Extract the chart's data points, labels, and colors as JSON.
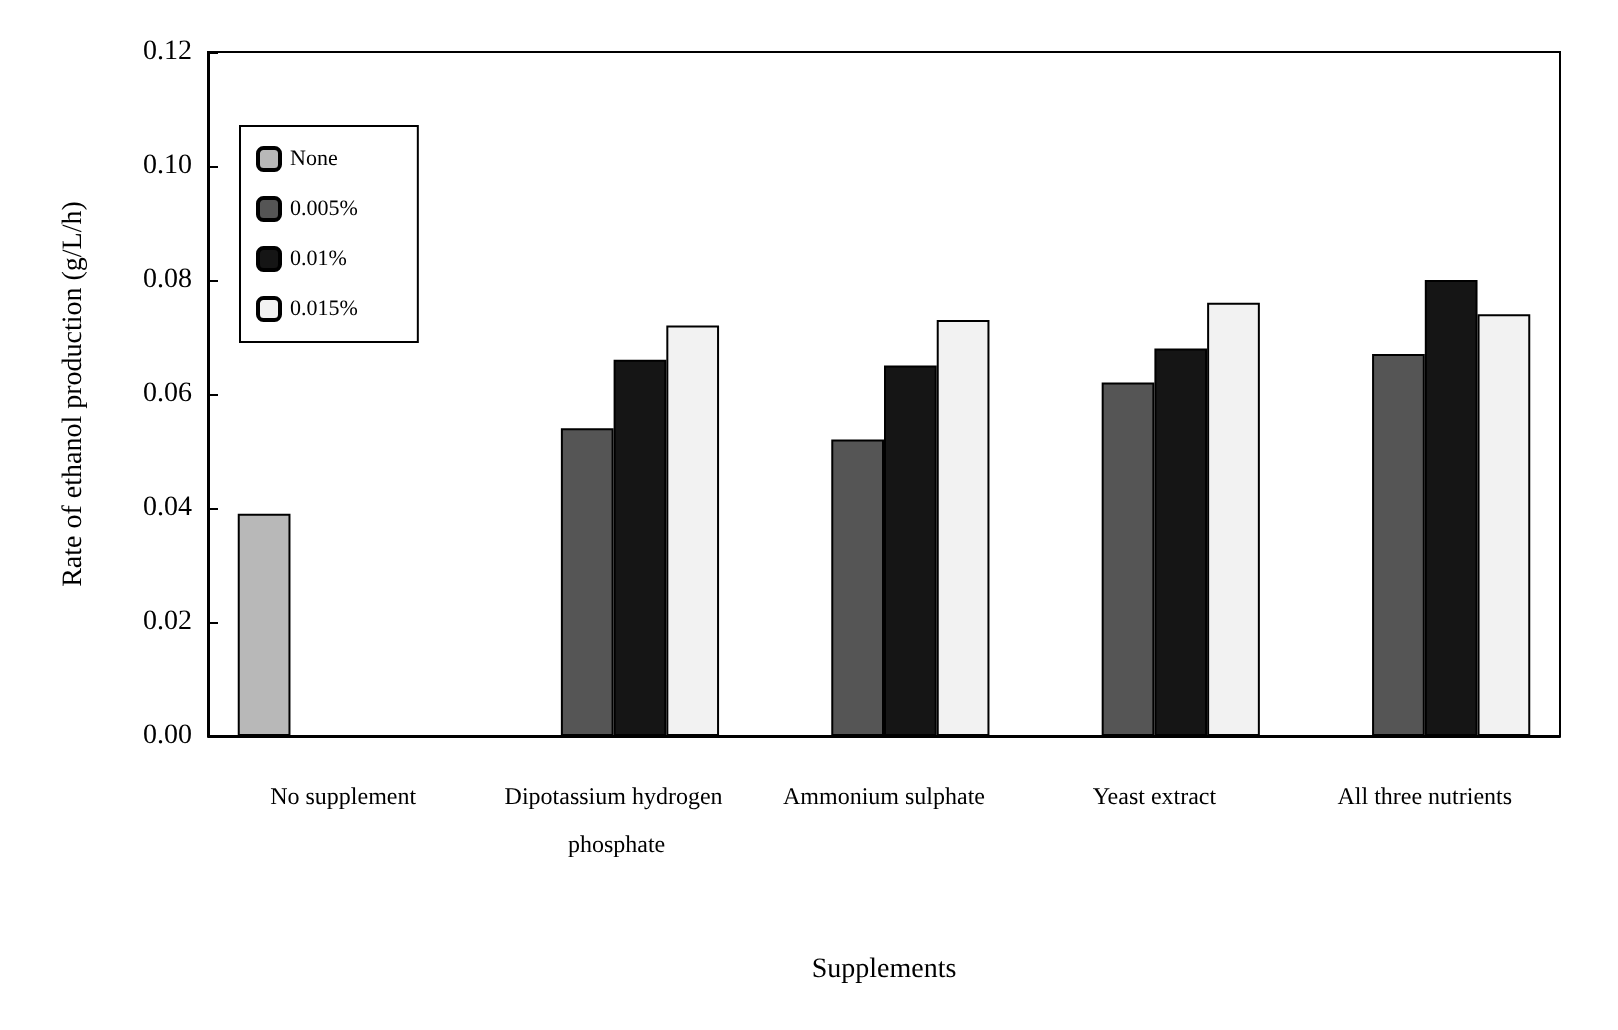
{
  "chart_data": {
    "type": "bar",
    "xlabel": "Supplements",
    "ylabel": "Rate of ethanol production (g/L/h)",
    "categories": [
      "No supplement",
      "Dipotassium hydrogen phosphate",
      "Ammonium sulphate",
      "Yeast extract",
      "All three nutrients"
    ],
    "series": [
      {
        "name": "None",
        "color": "#b8b8b8",
        "values": [
          0.039,
          null,
          null,
          null,
          null
        ]
      },
      {
        "name": "0.005%",
        "color": "#555555",
        "values": [
          null,
          0.054,
          0.052,
          0.062,
          0.067
        ]
      },
      {
        "name": "0.01%",
        "color": "#151515",
        "values": [
          null,
          0.066,
          0.065,
          0.068,
          0.08
        ]
      },
      {
        "name": "0.015%",
        "color": "#f2f2f2",
        "values": [
          null,
          0.072,
          0.073,
          0.076,
          0.074
        ]
      }
    ],
    "ylim": [
      0,
      0.12
    ],
    "yticks": [
      {
        "value": 0,
        "label": "0.00"
      },
      {
        "value": 0.02,
        "label": "0.02"
      },
      {
        "value": 0.04,
        "label": "0.04"
      },
      {
        "value": 0.06,
        "label": "0.06"
      },
      {
        "value": 0.08,
        "label": "0.08"
      },
      {
        "value": 0.1,
        "label": "0.10"
      },
      {
        "value": 0.12,
        "label": "0.12"
      }
    ],
    "grid": false,
    "legend": "top left"
  }
}
